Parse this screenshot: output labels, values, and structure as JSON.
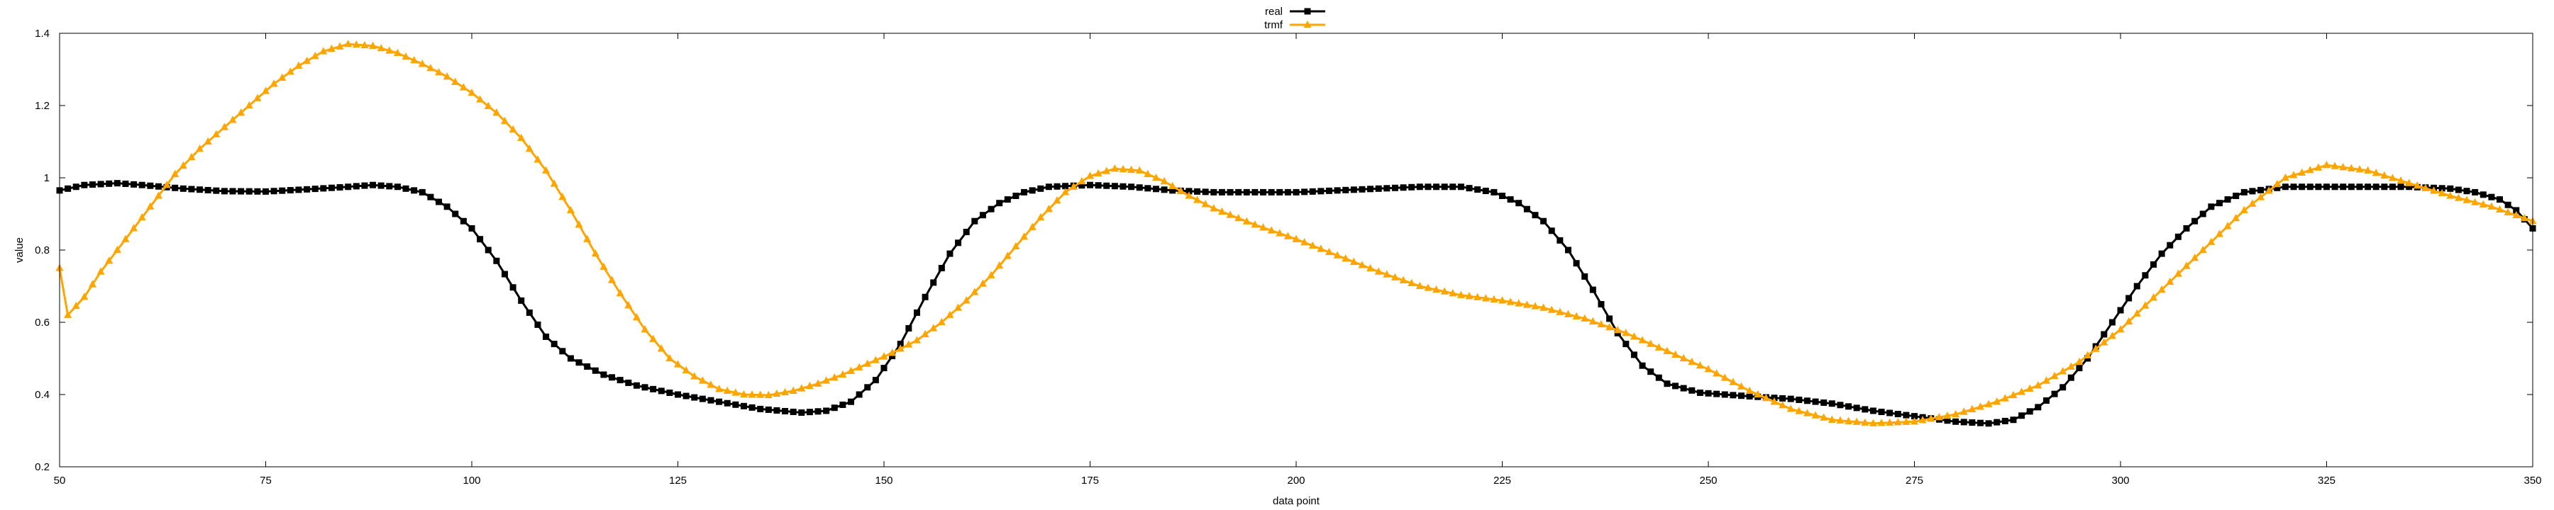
{
  "chart_data": {
    "type": "line",
    "title": "",
    "xlabel": "data point",
    "ylabel": "value",
    "xlim": [
      50,
      350
    ],
    "ylim": [
      0.2,
      1.4
    ],
    "x_ticks": [
      50,
      75,
      100,
      125,
      150,
      175,
      200,
      225,
      250,
      275,
      300,
      325,
      350
    ],
    "y_ticks": [
      0.2,
      0.4,
      0.6,
      0.8,
      1,
      1.2,
      1.4
    ],
    "grid": false,
    "legend_position": "top-center",
    "x_step": 1,
    "series": [
      {
        "name": "real",
        "color": "#000000",
        "marker": "square",
        "keypoints": [
          [
            50,
            0.965
          ],
          [
            53,
            0.98
          ],
          [
            57,
            0.985
          ],
          [
            60,
            0.98
          ],
          [
            65,
            0.97
          ],
          [
            70,
            0.963
          ],
          [
            75,
            0.962
          ],
          [
            80,
            0.968
          ],
          [
            85,
            0.975
          ],
          [
            88,
            0.98
          ],
          [
            91,
            0.975
          ],
          [
            94,
            0.96
          ],
          [
            97,
            0.92
          ],
          [
            100,
            0.86
          ],
          [
            103,
            0.77
          ],
          [
            106,
            0.66
          ],
          [
            109,
            0.56
          ],
          [
            112,
            0.5
          ],
          [
            116,
            0.455
          ],
          [
            120,
            0.425
          ],
          [
            125,
            0.4
          ],
          [
            130,
            0.38
          ],
          [
            135,
            0.36
          ],
          [
            140,
            0.35
          ],
          [
            143,
            0.355
          ],
          [
            146,
            0.38
          ],
          [
            149,
            0.44
          ],
          [
            152,
            0.54
          ],
          [
            155,
            0.67
          ],
          [
            158,
            0.79
          ],
          [
            161,
            0.88
          ],
          [
            164,
            0.93
          ],
          [
            167,
            0.96
          ],
          [
            170,
            0.975
          ],
          [
            175,
            0.98
          ],
          [
            180,
            0.975
          ],
          [
            185,
            0.965
          ],
          [
            190,
            0.96
          ],
          [
            200,
            0.96
          ],
          [
            210,
            0.97
          ],
          [
            215,
            0.975
          ],
          [
            220,
            0.975
          ],
          [
            224,
            0.96
          ],
          [
            227,
            0.93
          ],
          [
            230,
            0.88
          ],
          [
            233,
            0.8
          ],
          [
            236,
            0.69
          ],
          [
            239,
            0.57
          ],
          [
            242,
            0.48
          ],
          [
            245,
            0.43
          ],
          [
            249,
            0.405
          ],
          [
            255,
            0.395
          ],
          [
            260,
            0.388
          ],
          [
            265,
            0.375
          ],
          [
            270,
            0.355
          ],
          [
            275,
            0.34
          ],
          [
            280,
            0.325
          ],
          [
            284,
            0.32
          ],
          [
            287,
            0.33
          ],
          [
            290,
            0.365
          ],
          [
            293,
            0.42
          ],
          [
            296,
            0.5
          ],
          [
            299,
            0.6
          ],
          [
            302,
            0.7
          ],
          [
            305,
            0.79
          ],
          [
            308,
            0.86
          ],
          [
            311,
            0.92
          ],
          [
            315,
            0.96
          ],
          [
            320,
            0.975
          ],
          [
            325,
            0.975
          ],
          [
            330,
            0.975
          ],
          [
            335,
            0.975
          ],
          [
            340,
            0.97
          ],
          [
            343,
            0.96
          ],
          [
            346,
            0.94
          ],
          [
            348,
            0.91
          ],
          [
            350,
            0.86
          ]
        ]
      },
      {
        "name": "trmf",
        "color": "#FFA500",
        "marker": "triangle",
        "keypoints": [
          [
            50,
            0.75
          ],
          [
            51,
            0.62
          ],
          [
            53,
            0.67
          ],
          [
            55,
            0.74
          ],
          [
            58,
            0.83
          ],
          [
            61,
            0.92
          ],
          [
            64,
            1.01
          ],
          [
            67,
            1.08
          ],
          [
            70,
            1.14
          ],
          [
            73,
            1.2
          ],
          [
            76,
            1.26
          ],
          [
            79,
            1.31
          ],
          [
            82,
            1.35
          ],
          [
            85,
            1.37
          ],
          [
            88,
            1.365
          ],
          [
            91,
            1.345
          ],
          [
            94,
            1.315
          ],
          [
            97,
            1.28
          ],
          [
            100,
            1.235
          ],
          [
            103,
            1.18
          ],
          [
            106,
            1.11
          ],
          [
            109,
            1.02
          ],
          [
            112,
            0.91
          ],
          [
            115,
            0.79
          ],
          [
            118,
            0.68
          ],
          [
            121,
            0.58
          ],
          [
            124,
            0.5
          ],
          [
            127,
            0.45
          ],
          [
            130,
            0.415
          ],
          [
            133,
            0.4
          ],
          [
            136,
            0.398
          ],
          [
            139,
            0.41
          ],
          [
            142,
            0.43
          ],
          [
            145,
            0.455
          ],
          [
            148,
            0.485
          ],
          [
            151,
            0.515
          ],
          [
            154,
            0.55
          ],
          [
            157,
            0.6
          ],
          [
            160,
            0.66
          ],
          [
            163,
            0.73
          ],
          [
            166,
            0.81
          ],
          [
            169,
            0.89
          ],
          [
            172,
            0.96
          ],
          [
            175,
            1.005
          ],
          [
            178,
            1.025
          ],
          [
            181,
            1.02
          ],
          [
            184,
            0.99
          ],
          [
            187,
            0.95
          ],
          [
            190,
            0.915
          ],
          [
            195,
            0.87
          ],
          [
            200,
            0.83
          ],
          [
            205,
            0.785
          ],
          [
            210,
            0.74
          ],
          [
            215,
            0.7
          ],
          [
            220,
            0.675
          ],
          [
            225,
            0.66
          ],
          [
            230,
            0.64
          ],
          [
            235,
            0.61
          ],
          [
            240,
            0.57
          ],
          [
            245,
            0.52
          ],
          [
            250,
            0.47
          ],
          [
            255,
            0.41
          ],
          [
            260,
            0.36
          ],
          [
            265,
            0.33
          ],
          [
            270,
            0.32
          ],
          [
            275,
            0.325
          ],
          [
            280,
            0.345
          ],
          [
            285,
            0.38
          ],
          [
            290,
            0.425
          ],
          [
            295,
            0.49
          ],
          [
            300,
            0.58
          ],
          [
            305,
            0.69
          ],
          [
            310,
            0.8
          ],
          [
            315,
            0.91
          ],
          [
            320,
            1.0
          ],
          [
            325,
            1.035
          ],
          [
            330,
            1.02
          ],
          [
            335,
            0.985
          ],
          [
            340,
            0.95
          ],
          [
            345,
            0.92
          ],
          [
            350,
            0.88
          ]
        ]
      }
    ]
  }
}
